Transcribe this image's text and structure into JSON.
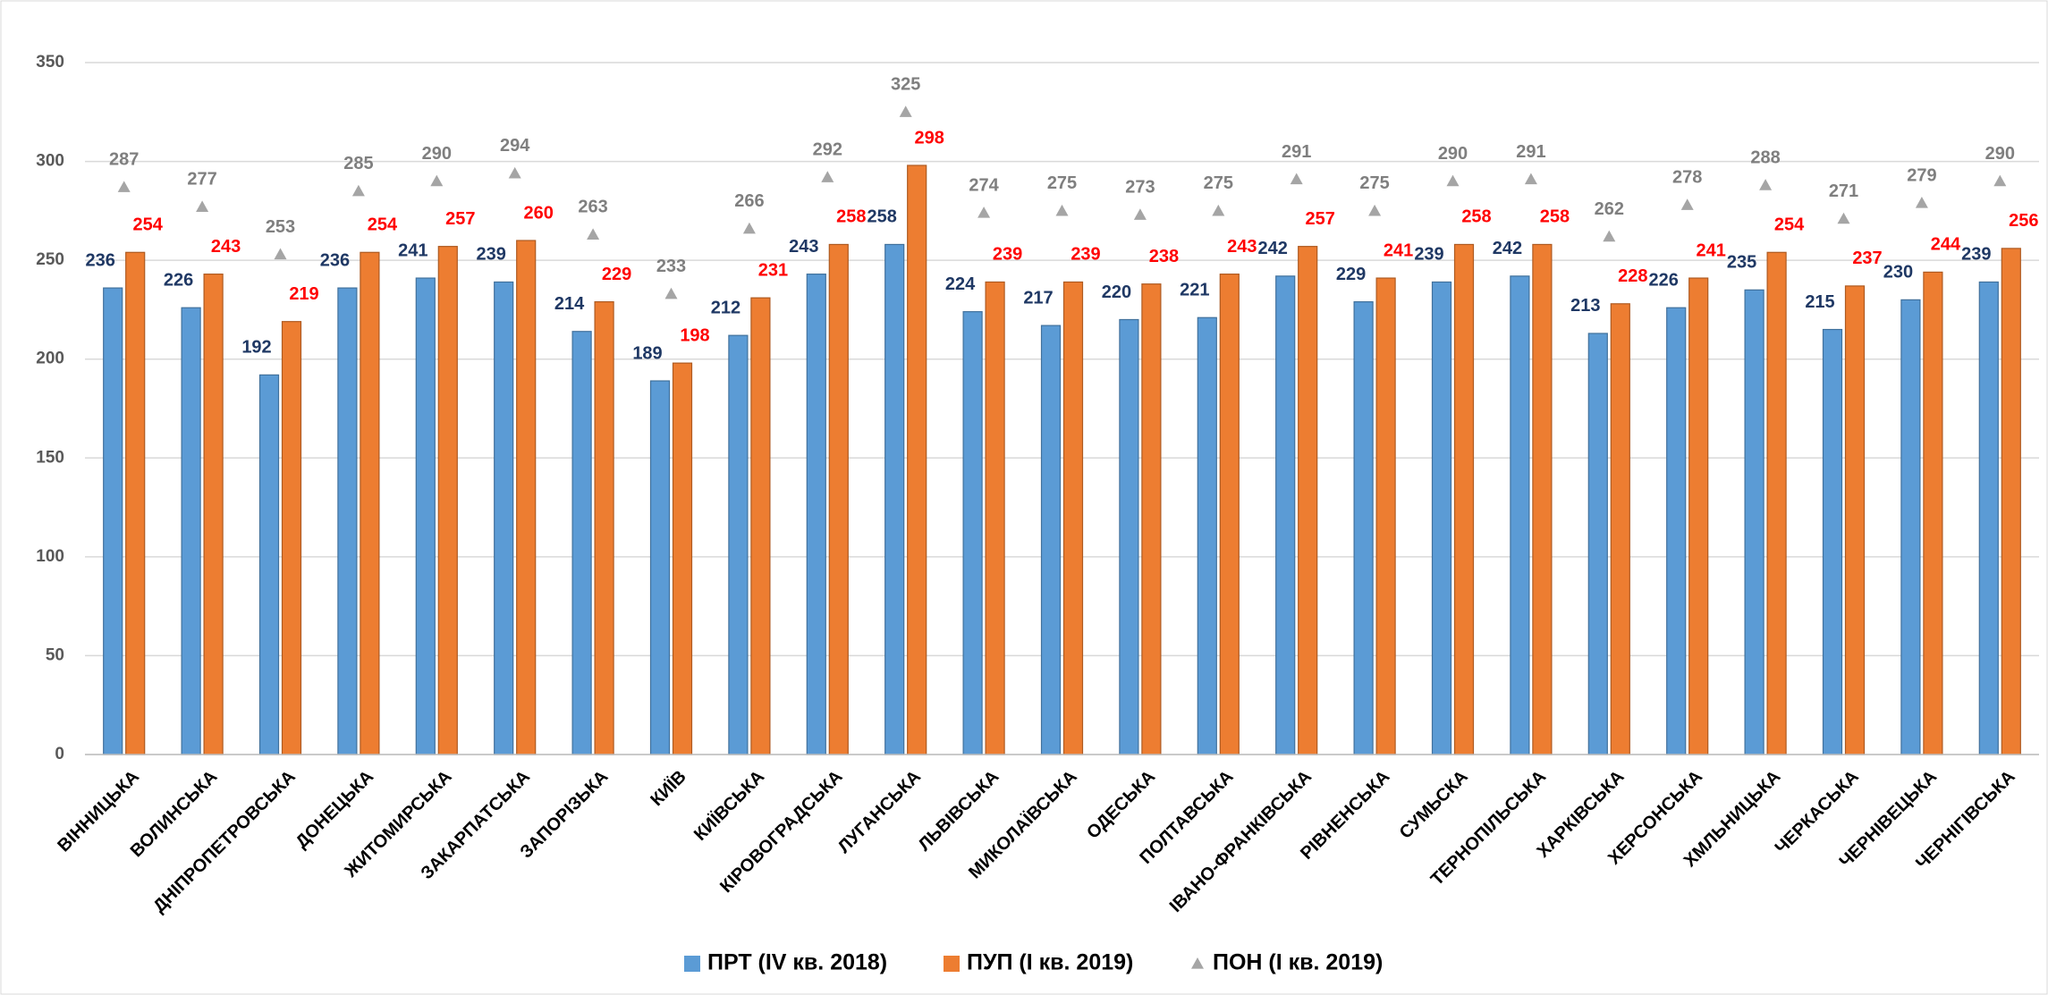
{
  "chart_data": {
    "type": "bar",
    "categories": [
      "ВІННИЦЬКА",
      "ВОЛИНСЬКА",
      "ДНІПРОПЕТРОВСЬКА",
      "ДОНЕЦЬКА",
      "ЖИТОМИРСЬКА",
      "ЗАКАРПАТСЬКА",
      "ЗАПОРІЗЬКА",
      "КИЇВ",
      "КИЇВСЬКА",
      "КІРОВОГРАДСЬКА",
      "ЛУГАНСЬКА",
      "ЛЬВІВСЬКА",
      "МИКОЛАЇВСЬКА",
      "ОДЕСЬКА",
      "ПОЛТАВСЬКА",
      "ІВАНО-ФРАНКІВСЬКА",
      "РІВНЕНСЬКА",
      "СУМЬСКА",
      "ТЕРНОПІЛЬСЬКА",
      "ХАРКІВСЬКА",
      "ХЕРСОНСЬКА",
      "ХМЛЬНИЦЬКА",
      "ЧЕРКАСЬКА",
      "ЧЕРНІВЕЦЬКА",
      "ЧЕРНІГІВСЬКА"
    ],
    "series": [
      {
        "name": "ПРТ (IV кв. 2018)",
        "type": "bar",
        "color": "#5b9bd5",
        "label_color": "#1f3864",
        "values": [
          236,
          226,
          192,
          236,
          241,
          239,
          214,
          189,
          212,
          243,
          258,
          224,
          217,
          220,
          221,
          242,
          229,
          239,
          242,
          213,
          226,
          235,
          215,
          230,
          239
        ]
      },
      {
        "name": "ПУП (І кв. 2019)",
        "type": "bar",
        "color": "#ed7d31",
        "label_color": "#ff0000",
        "values": [
          254,
          243,
          219,
          254,
          257,
          260,
          229,
          198,
          231,
          258,
          298,
          239,
          239,
          238,
          243,
          257,
          241,
          258,
          258,
          228,
          241,
          254,
          237,
          244,
          256
        ]
      },
      {
        "name": "ПОН (І кв. 2019)",
        "type": "scatter",
        "color": "#a5a5a5",
        "label_color": "#7f7f7f",
        "values": [
          287,
          277,
          253,
          285,
          290,
          294,
          263,
          233,
          266,
          292,
          325,
          274,
          275,
          273,
          275,
          291,
          275,
          290,
          291,
          262,
          278,
          288,
          271,
          279,
          290
        ]
      }
    ],
    "ylim": [
      0,
      350
    ],
    "yticks": [
      0,
      50,
      100,
      150,
      200,
      250,
      300,
      350
    ],
    "grid": true,
    "legend": "bottom"
  }
}
